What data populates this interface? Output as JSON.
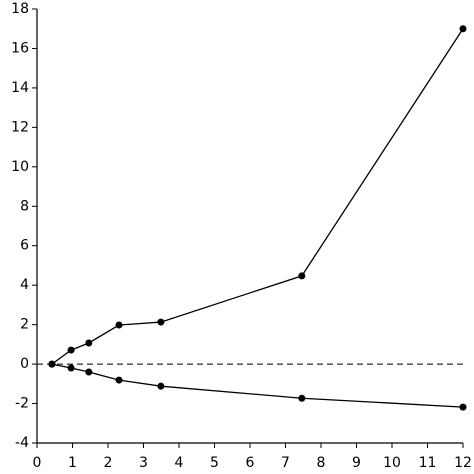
{
  "chart_data": {
    "type": "line",
    "x": [
      0.42,
      0.96,
      1.46,
      2.31,
      3.49,
      7.46,
      12
    ],
    "series": [
      {
        "color": "#000000",
        "values": [
          0,
          0.71,
          1.07,
          1.98,
          2.13,
          4.47,
          17
        ]
      },
      {
        "color": "#000000",
        "values": [
          0,
          -0.2,
          -0.4,
          -0.81,
          -1.12,
          -1.73,
          -2.18
        ]
      }
    ],
    "xlim": [
      0,
      12
    ],
    "xticks": [
      0,
      1,
      2,
      3,
      4,
      5,
      6,
      7,
      8,
      9,
      10,
      11,
      12
    ],
    "ylim": [
      -4,
      18
    ],
    "yticks": [
      -4,
      -2,
      0,
      2,
      4,
      6,
      8,
      10,
      12,
      14,
      16,
      18
    ],
    "reference_line": {
      "y": 0,
      "style": "dashed"
    },
    "grid": false
  }
}
